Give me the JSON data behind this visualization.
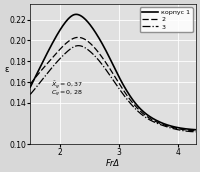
{
  "title": "",
  "xlabel": "FrΔ",
  "ylabel": "ε",
  "xlim": [
    1.5,
    4.3
  ],
  "ylim": [
    0.1,
    0.235
  ],
  "yticks": [
    0.1,
    0.14,
    0.16,
    0.18,
    0.2,
    0.22
  ],
  "xticks": [
    2,
    3,
    4
  ],
  "annotation1": "$\\bar{X}_g = 0,37$",
  "annotation2": "$C_g = 0,28$",
  "legend_labels": [
    "корпус 1",
    "2",
    "3"
  ],
  "bg_color": "#e8e8e8",
  "curve1_x": [
    1.5,
    1.7,
    1.9,
    2.1,
    2.25,
    2.4,
    2.6,
    2.8,
    3.0,
    3.3,
    3.6,
    4.0,
    4.3
  ],
  "curve1_y": [
    0.155,
    0.178,
    0.2,
    0.218,
    0.225,
    0.222,
    0.208,
    0.188,
    0.165,
    0.138,
    0.124,
    0.116,
    0.114
  ],
  "curve2_x": [
    1.5,
    1.7,
    1.9,
    2.1,
    2.3,
    2.5,
    2.7,
    2.9,
    3.1,
    3.4,
    3.7,
    4.0,
    4.3
  ],
  "curve2_y": [
    0.158,
    0.172,
    0.185,
    0.197,
    0.203,
    0.198,
    0.185,
    0.168,
    0.15,
    0.13,
    0.12,
    0.115,
    0.113
  ],
  "curve3_x": [
    1.5,
    1.7,
    1.9,
    2.1,
    2.3,
    2.5,
    2.7,
    2.9,
    3.1,
    3.4,
    3.7,
    4.0,
    4.3
  ],
  "curve3_y": [
    0.148,
    0.162,
    0.176,
    0.188,
    0.195,
    0.19,
    0.178,
    0.162,
    0.146,
    0.128,
    0.119,
    0.114,
    0.112
  ]
}
